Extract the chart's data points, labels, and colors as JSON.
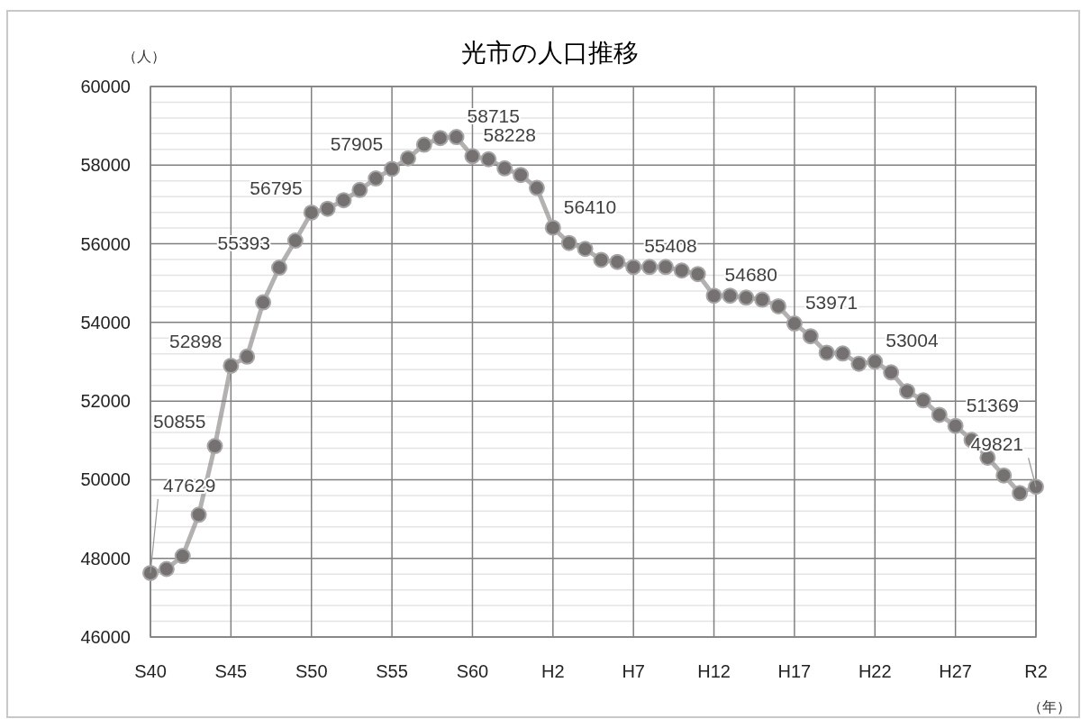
{
  "chart_data": {
    "type": "line",
    "title": "光市の人口推移",
    "ylabel": "（人）",
    "xlabel": "（年）",
    "categories": [
      "S40",
      null,
      null,
      null,
      null,
      "S45",
      null,
      null,
      null,
      null,
      "S50",
      null,
      null,
      null,
      null,
      "S55",
      null,
      null,
      null,
      null,
      "S60",
      null,
      null,
      null,
      null,
      "H2",
      null,
      null,
      null,
      null,
      "H7",
      null,
      null,
      null,
      null,
      "H12",
      null,
      null,
      null,
      null,
      "H17",
      null,
      null,
      null,
      null,
      "H22",
      null,
      null,
      null,
      null,
      "H27",
      null,
      null,
      null,
      null,
      "R2"
    ],
    "series": [
      {
        "color": "#767171",
        "values": [
          47629,
          47730,
          48060,
          49110,
          50855,
          52898,
          53130,
          54510,
          55393,
          56080,
          56795,
          56890,
          57110,
          57370,
          57660,
          57905,
          58175,
          58520,
          58690,
          58715,
          58228,
          58150,
          57920,
          57750,
          57420,
          56410,
          56020,
          55870,
          55590,
          55540,
          55408,
          55410,
          55410,
          55320,
          55230,
          54680,
          54680,
          54630,
          54580,
          54410,
          53971,
          53650,
          53230,
          53210,
          52950,
          53004,
          52730,
          52250,
          52020,
          51650,
          51369,
          51010,
          50560,
          50110,
          49660,
          49821
        ],
        "value_labels": [
          "47629",
          null,
          null,
          null,
          "50855",
          "52898",
          null,
          null,
          "55393",
          null,
          "56795",
          null,
          null,
          null,
          null,
          "57905",
          null,
          null,
          null,
          "58715",
          "58228",
          null,
          null,
          null,
          null,
          "56410",
          null,
          null,
          null,
          null,
          "55408",
          null,
          null,
          null,
          null,
          "54680",
          null,
          null,
          null,
          null,
          "53971",
          null,
          null,
          null,
          null,
          "53004",
          null,
          null,
          null,
          null,
          "51369",
          null,
          null,
          null,
          null,
          "49821"
        ]
      }
    ],
    "ylim": [
      46000,
      60000
    ],
    "yticks": [
      46000,
      {
        "value": 46400,
        "label": null
      },
      {
        "value": 46800,
        "label": null
      },
      {
        "value": 47200,
        "label": null
      },
      {
        "value": 47600,
        "label": null
      },
      48000,
      {
        "value": 48400,
        "label": null
      },
      {
        "value": 48800,
        "label": null
      },
      {
        "value": 49200,
        "label": null
      },
      {
        "value": 49600,
        "label": null
      },
      50000,
      {
        "value": 50400,
        "label": null
      },
      {
        "value": 50800,
        "label": null
      },
      {
        "value": 51200,
        "label": null
      },
      {
        "value": 51600,
        "label": null
      },
      52000,
      {
        "value": 52400,
        "label": null
      },
      {
        "value": 52800,
        "label": null
      },
      {
        "value": 53200,
        "label": null
      },
      {
        "value": 53600,
        "label": null
      },
      54000,
      {
        "value": 54400,
        "label": null
      },
      {
        "value": 54800,
        "label": null
      },
      {
        "value": 55200,
        "label": null
      },
      {
        "value": 55600,
        "label": null
      },
      56000,
      {
        "value": 56400,
        "label": null
      },
      {
        "value": 56800,
        "label": null
      },
      {
        "value": 57200,
        "label": null
      },
      {
        "value": 57600,
        "label": null
      },
      58000,
      {
        "value": 58400,
        "label": null
      },
      {
        "value": 58800,
        "label": null
      },
      {
        "value": 59200,
        "label": null
      },
      {
        "value": 59600,
        "label": null
      },
      60000
    ],
    "grid": true,
    "marker": "circle"
  }
}
